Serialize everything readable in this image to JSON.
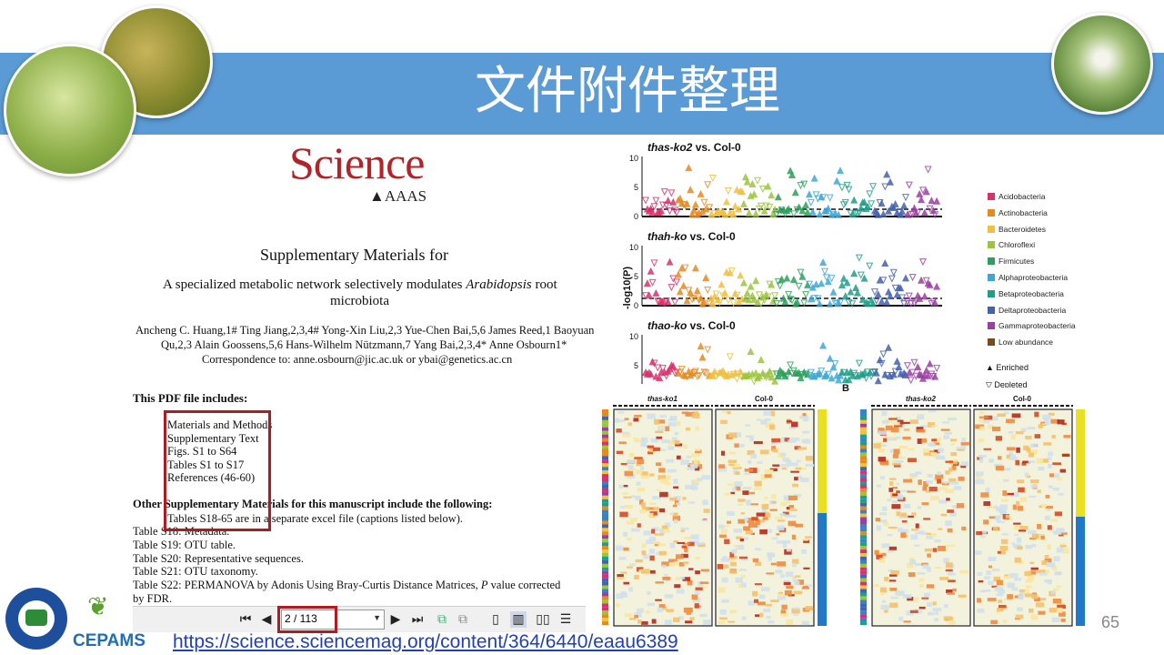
{
  "slide": {
    "title": "文件附件整理",
    "page_number": "65",
    "link": "https://science.sciencemag.org/content/364/6440/eaau6389",
    "logo_text": "CEPAMS"
  },
  "document": {
    "journal": "Science",
    "publisher": "AAAS",
    "heading": "Supplementary Materials for",
    "paper_title_pre": "A specialized metabolic network selectively modulates ",
    "paper_title_em": "Arabidopsis",
    "paper_title_post": " root",
    "paper_title_line2": "microbiota",
    "authors_line1": "Ancheng C. Huang,1# Ting Jiang,2,3,4# Yong-Xin Liu,2,3 Yue-Chen Bai,5,6 James Reed,1 Baoyuan",
    "authors_line2": "Qu,2,3 Alain Goossens,5,6 Hans-Wilhelm Nützmann,7 Yang Bai,2,3,4* Anne Osbourn1*",
    "correspondence": "Correspondence to: anne.osbourn@jic.ac.uk or ybai@genetics.ac.cn",
    "includes_heading": "This PDF file includes:",
    "includes_items": [
      "Materials and Methods",
      "Supplementary Text",
      "Figs. S1 to S64",
      "Tables S1 to S17",
      "References (46-60)"
    ],
    "other_heading": "Other Supplementary Materials for this manuscript include the following:",
    "other_line": "Tables S18-65 are in a separate excel file (captions listed below).",
    "tables": [
      "Table S18: Metadata.",
      "Table S19: OTU table.",
      "Table S20: Representative sequences.",
      "Table S21: OTU taxonomy."
    ],
    "table_s22_pre": "Table S22: PERMANOVA by Adonis Using Bray-Curtis Distance Matrices, ",
    "table_s22_em": "P",
    "table_s22_post": " value corrected",
    "table_s22_line2": "by FDR."
  },
  "pdf_toolbar": {
    "page_value": "2 / 113",
    "icons": [
      "first-page-icon",
      "prev-page-icon",
      "next-page-icon",
      "last-page-icon",
      "copy-icon",
      "paste-icon",
      "single-page-icon",
      "continuous-page-icon",
      "two-page-icon",
      "scroll-icon"
    ]
  },
  "manhattan": {
    "panels": [
      {
        "genotype": "thas-ko2",
        "vs": " vs. Col-0"
      },
      {
        "genotype": "thah-ko",
        "vs": " vs. Col-0"
      },
      {
        "genotype": "thao-ko",
        "vs": " vs. Col-0"
      }
    ],
    "ylabel": "-log10(P)",
    "yticks": [
      "10",
      "5",
      "0"
    ],
    "legend": [
      {
        "name": "Acidobacteria",
        "color": "#d6336c"
      },
      {
        "name": "Actinobacteria",
        "color": "#e58a1f"
      },
      {
        "name": "Bacteroidetes",
        "color": "#f0c040"
      },
      {
        "name": "Chloroflexi",
        "color": "#9bc53d"
      },
      {
        "name": "Firmicutes",
        "color": "#2ca05a"
      },
      {
        "name": "Alphaproteobacteria",
        "color": "#3fa7d6"
      },
      {
        "name": "Betaproteobacteria",
        "color": "#1f9e89"
      },
      {
        "name": "Deltaproteobacteria",
        "color": "#4462b0"
      },
      {
        "name": "Gammaproteobacteria",
        "color": "#9b3fa0"
      },
      {
        "name": "Low abundance",
        "color": "#7a4a1e"
      }
    ],
    "markers": [
      "Enriched",
      "Depleted"
    ],
    "panel_label_b": "B"
  },
  "heatmaps": [
    {
      "left_label": "thas-ko1",
      "right_label": "Col-0"
    },
    {
      "left_label": "thas-ko2",
      "right_label": "Col-0"
    }
  ]
}
